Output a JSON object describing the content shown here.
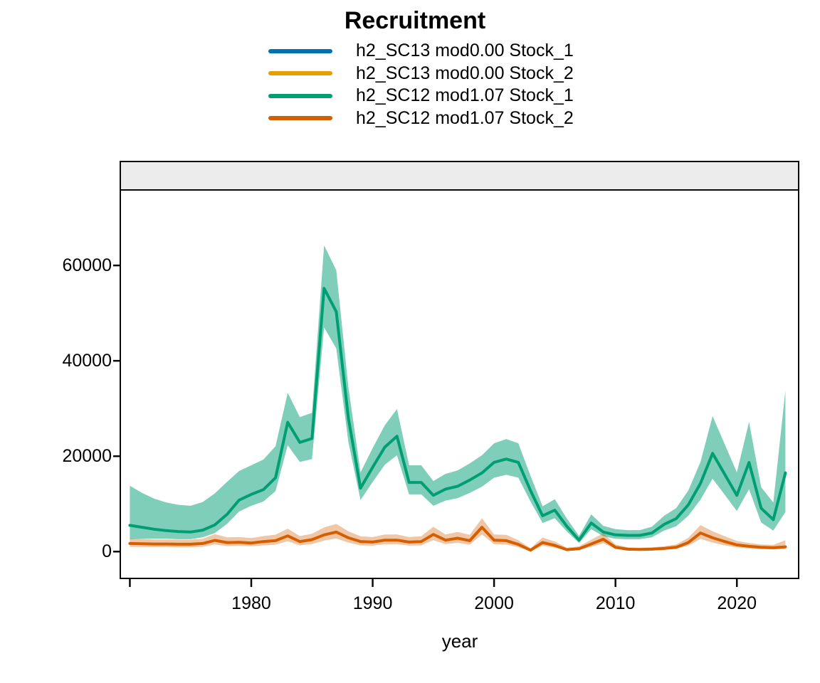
{
  "title": "Recruitment",
  "legend": [
    {
      "label": "h2_SC13 mod0.00 Stock_1",
      "color": "#0072B2"
    },
    {
      "label": "h2_SC13 mod0.00 Stock_2",
      "color": "#E69F00"
    },
    {
      "label": "h2_SC12 mod1.07 Stock_1",
      "color": "#009E73"
    },
    {
      "label": "h2_SC12 mod1.07 Stock_2",
      "color": "#D55E00"
    }
  ],
  "colors": {
    "strip_fill": "#ECECEC",
    "panel_border": "#000000",
    "blue": "#0072B2",
    "orange": "#E69F00",
    "green": "#009E73",
    "vermillion": "#D55E00"
  },
  "chart_data": {
    "type": "line",
    "title": "Recruitment",
    "xlabel": "year",
    "ylabel": "",
    "grid": false,
    "legend_position": "top-center",
    "xlim": [
      1969.3,
      2025.0
    ],
    "ylim": [
      -5400,
      75600
    ],
    "x_ticks": {
      "values": [
        1970,
        1980,
        1990,
        2000,
        2010,
        2020
      ],
      "labels": [
        "",
        "1980",
        "1990",
        "2000",
        "2010",
        "2020"
      ]
    },
    "y_ticks": {
      "values": [
        0,
        20000,
        40000,
        60000
      ],
      "labels": [
        "0",
        "20000",
        "40000",
        "60000"
      ]
    },
    "years": [
      1970,
      1971,
      1972,
      1973,
      1974,
      1975,
      1976,
      1977,
      1978,
      1979,
      1980,
      1981,
      1982,
      1983,
      1984,
      1985,
      1986,
      1987,
      1988,
      1989,
      1990,
      1991,
      1992,
      1993,
      1994,
      1995,
      1996,
      1997,
      1998,
      1999,
      2000,
      2001,
      2002,
      2003,
      2004,
      2005,
      2006,
      2007,
      2008,
      2009,
      2010,
      2011,
      2012,
      2013,
      2014,
      2015,
      2016,
      2017,
      2018,
      2019,
      2020,
      2021,
      2022,
      2023,
      2024
    ],
    "series": [
      {
        "name": "h2_SC12 mod1.07 Stock_1",
        "color": "#009E73",
        "ribbon_color": "rgba(0,158,115,0.5)",
        "values": [
          5500,
          5100,
          4700,
          4400,
          4200,
          4100,
          4500,
          5600,
          7800,
          10800,
          12000,
          13000,
          15500,
          27100,
          22900,
          23700,
          55200,
          50300,
          28000,
          13300,
          17700,
          21900,
          24200,
          14500,
          14500,
          11800,
          13100,
          13700,
          15000,
          16500,
          18700,
          19400,
          18700,
          12800,
          7500,
          8700,
          5300,
          2400,
          6000,
          4100,
          3500,
          3400,
          3400,
          3900,
          5700,
          6900,
          9800,
          14300,
          20600,
          16200,
          11800,
          18700,
          9100,
          6700,
          16500
        ],
        "lower": [
          2600,
          2700,
          2700,
          2700,
          2600,
          2600,
          3000,
          3900,
          5800,
          8400,
          9600,
          10500,
          12700,
          22300,
          18800,
          19400,
          47000,
          42600,
          23000,
          10800,
          14600,
          18200,
          20200,
          12000,
          12000,
          9600,
          10700,
          11200,
          12300,
          13600,
          15500,
          16100,
          15500,
          10500,
          6000,
          7000,
          4200,
          1800,
          4700,
          3200,
          2700,
          2600,
          2600,
          3000,
          4400,
          5300,
          7500,
          10900,
          15300,
          11900,
          8500,
          13100,
          6100,
          4400,
          8300
        ],
        "upper": [
          13800,
          12300,
          11100,
          10300,
          9800,
          9600,
          10400,
          12200,
          14600,
          16900,
          18100,
          19300,
          22100,
          33300,
          28200,
          29100,
          64200,
          59000,
          34500,
          16600,
          21700,
          26500,
          29900,
          18100,
          18100,
          14800,
          16300,
          17000,
          18500,
          20200,
          22700,
          23600,
          22700,
          15900,
          9500,
          11000,
          6900,
          3300,
          7800,
          5400,
          4700,
          4500,
          4500,
          5200,
          7500,
          9100,
          12800,
          18800,
          28400,
          22500,
          16600,
          27200,
          13500,
          10300,
          33800
        ]
      },
      {
        "name": "h2_SC12 mod1.07 Stock_2",
        "color": "#D55E00",
        "ribbon_color": "rgba(213,94,0,0.35)",
        "values": [
          1700,
          1650,
          1600,
          1600,
          1550,
          1550,
          1700,
          2350,
          1900,
          1950,
          1800,
          2100,
          2300,
          3300,
          2100,
          2500,
          3500,
          4100,
          2900,
          2100,
          2000,
          2400,
          2400,
          2000,
          2100,
          3600,
          2400,
          2800,
          2300,
          5100,
          2400,
          2300,
          1500,
          300,
          1900,
          1300,
          400,
          600,
          1600,
          2600,
          900,
          500,
          450,
          500,
          650,
          900,
          1900,
          3900,
          2900,
          2100,
          1400,
          1100,
          900,
          800,
          1000
        ],
        "lower": [
          1000,
          950,
          950,
          950,
          900,
          900,
          1000,
          1500,
          1150,
          1200,
          1100,
          1300,
          1450,
          2200,
          1300,
          1600,
          2300,
          2750,
          1900,
          1300,
          1250,
          1550,
          1550,
          1250,
          1300,
          2400,
          1550,
          1850,
          1450,
          3600,
          1550,
          1500,
          900,
          100,
          1200,
          800,
          200,
          350,
          1000,
          1750,
          550,
          300,
          250,
          300,
          400,
          550,
          1250,
          2650,
          1900,
          1300,
          850,
          650,
          500,
          450,
          500
        ],
        "upper": [
          2700,
          2650,
          2550,
          2550,
          2500,
          2500,
          2700,
          3650,
          3000,
          3050,
          2850,
          3250,
          3550,
          4800,
          3250,
          3750,
          5050,
          5800,
          4250,
          3200,
          3050,
          3600,
          3600,
          3050,
          3200,
          5200,
          3600,
          4100,
          3500,
          7000,
          3600,
          3500,
          2400,
          700,
          2950,
          2100,
          800,
          1100,
          2500,
          3800,
          1500,
          900,
          800,
          900,
          1100,
          1500,
          2900,
          5550,
          4250,
          3200,
          2250,
          1800,
          1500,
          1400,
          2400
        ]
      }
    ]
  }
}
